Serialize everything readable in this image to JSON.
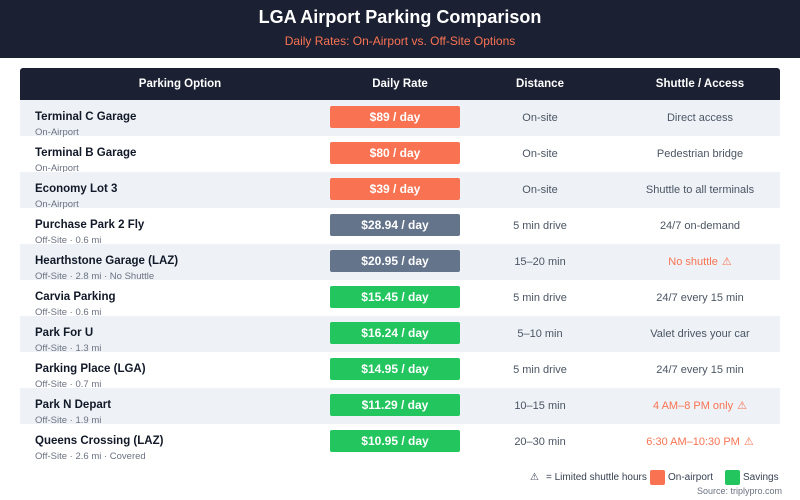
{
  "header": {
    "title": "LGA Airport Parking Comparison",
    "subtitle": "Daily Rates: On-Airport vs. Off-Site Options"
  },
  "columns": [
    "Parking Option",
    "Daily Rate",
    "Distance",
    "Shuttle / Access"
  ],
  "colors": {
    "on_airport": "#f97352",
    "limited": "#64748b",
    "savings": "#22c55e",
    "warning_text": "#f97352"
  },
  "rows": [
    {
      "name": "Terminal C Garage",
      "sub": "On-Airport",
      "rate": "$89 / day",
      "category": "on_airport",
      "distance": "On-site",
      "access": "Direct access",
      "access_warning": false
    },
    {
      "name": "Terminal B Garage",
      "sub": "On-Airport",
      "rate": "$80 / day",
      "category": "on_airport",
      "distance": "On-site",
      "access": "Pedestrian bridge",
      "access_warning": false
    },
    {
      "name": "Economy Lot 3",
      "sub": "On-Airport",
      "rate": "$39 / day",
      "category": "on_airport",
      "distance": "On-site",
      "access": "Shuttle to all terminals",
      "access_warning": false
    },
    {
      "name": "Purchase Park 2 Fly",
      "sub": "Off-Site · 0.6 mi",
      "rate": "$28.94 / day",
      "category": "limited",
      "distance": "5 min drive",
      "access": "24/7 on-demand",
      "access_warning": false
    },
    {
      "name": "Hearthstone Garage (LAZ)",
      "sub": "Off-Site · 2.8 mi · No Shuttle",
      "rate": "$20.95 / day",
      "category": "limited",
      "distance": "15–20 min",
      "access": "No shuttle",
      "access_warning": true
    },
    {
      "name": "Carvia Parking",
      "sub": "Off-Site · 0.6 mi",
      "rate": "$15.45 / day",
      "category": "savings",
      "distance": "5 min drive",
      "access": "24/7 every 15 min",
      "access_warning": false
    },
    {
      "name": "Park For U",
      "sub": "Off-Site · 1.3 mi",
      "rate": "$16.24 / day",
      "category": "savings",
      "distance": "5–10 min",
      "access": "Valet drives your car",
      "access_warning": false
    },
    {
      "name": "Parking Place (LGA)",
      "sub": "Off-Site · 0.7 mi",
      "rate": "$14.95 / day",
      "category": "savings",
      "distance": "5 min drive",
      "access": "24/7 every 15 min",
      "access_warning": false
    },
    {
      "name": "Park N Depart",
      "sub": "Off-Site · 1.9 mi",
      "rate": "$11.29 / day",
      "category": "savings",
      "distance": "10–15 min",
      "access": "4 AM–8 PM only",
      "access_warning": true
    },
    {
      "name": "Queens Crossing (LAZ)",
      "sub": "Off-Site · 2.6 mi · Covered",
      "rate": "$10.95 / day",
      "category": "savings",
      "distance": "20–30 min",
      "access": "6:30 AM–10:30 PM",
      "access_warning": true
    }
  ],
  "legend": {
    "warning_symbol": "⚠",
    "warning": "= Limited shuttle hours",
    "on_airport": "On-airport",
    "savings": "Savings"
  },
  "source": "Source: triplypro.com"
}
